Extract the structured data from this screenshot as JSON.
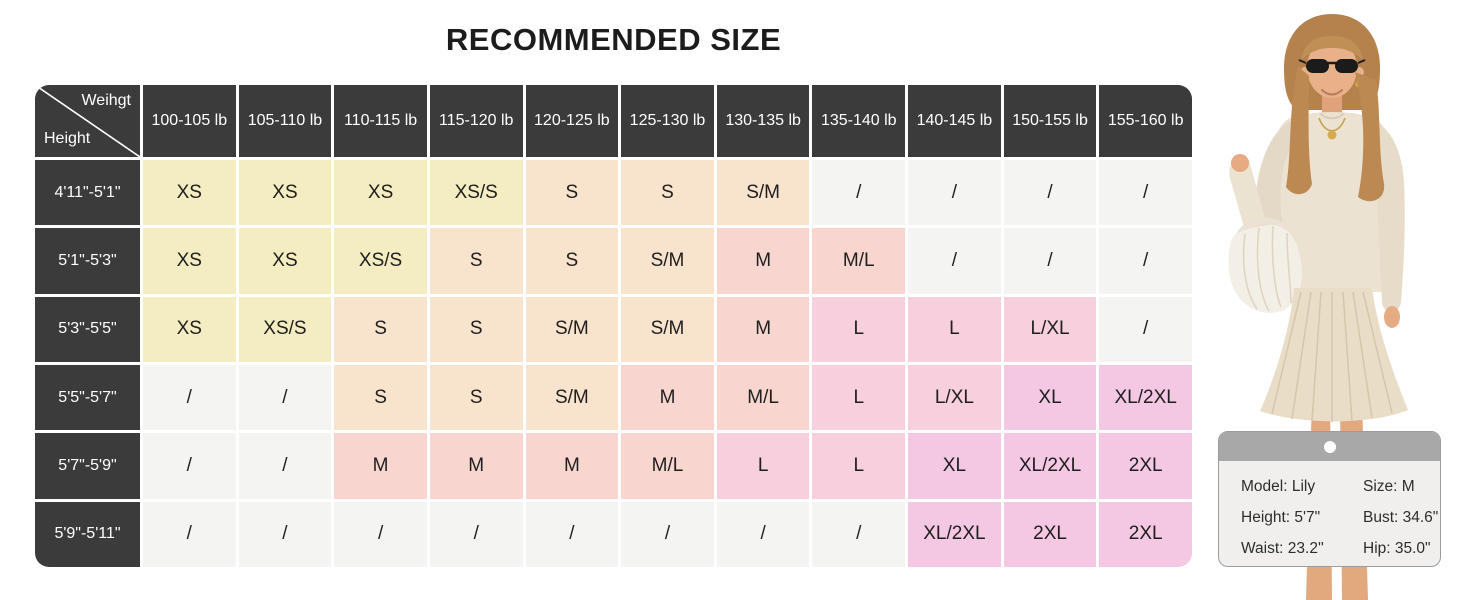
{
  "title": "RECOMMENDED SIZE",
  "chart_data": {
    "type": "table",
    "title": "RECOMMENDED SIZE",
    "corner": {
      "top_right_label": "Weihgt",
      "bottom_left_label": "Height"
    },
    "columns": [
      "100-105 lb",
      "105-110 lb",
      "110-115 lb",
      "115-120 lb",
      "120-125 lb",
      "125-130 lb",
      "130-135 lb",
      "135-140 lb",
      "140-145 lb",
      "150-155 lb",
      "155-160 lb"
    ],
    "rows": [
      {
        "label": "4'11\"-5'1\"",
        "values": [
          "XS",
          "XS",
          "XS",
          "XS/S",
          "S",
          "S",
          "S/M",
          "/",
          "/",
          "/",
          "/"
        ]
      },
      {
        "label": "5'1\"-5'3\"",
        "values": [
          "XS",
          "XS",
          "XS/S",
          "S",
          "S",
          "S/M",
          "M",
          "M/L",
          "/",
          "/",
          "/"
        ]
      },
      {
        "label": "5'3\"-5'5\"",
        "values": [
          "XS",
          "XS/S",
          "S",
          "S",
          "S/M",
          "S/M",
          "M",
          "L",
          "L",
          "L/XL",
          "/"
        ]
      },
      {
        "label": "5'5\"-5'7\"",
        "values": [
          "/",
          "/",
          "S",
          "S",
          "S/M",
          "M",
          "M/L",
          "L",
          "L/XL",
          "XL",
          "XL/2XL"
        ]
      },
      {
        "label": "5'7\"-5'9\"",
        "values": [
          "/",
          "/",
          "M",
          "M",
          "M",
          "M/L",
          "L",
          "L",
          "XL",
          "XL/2XL",
          "2XL"
        ]
      },
      {
        "label": "5'9\"-5'11\"",
        "values": [
          "/",
          "/",
          "/",
          "/",
          "/",
          "/",
          "/",
          "/",
          "XL/2XL",
          "2XL",
          "2XL"
        ]
      }
    ],
    "cell_colors": {
      "XS": "#f4edc2",
      "XS/S": "#f4edc2",
      "S": "#f8e3cc",
      "S/M": "#f8e3cc",
      "M": "#f8d5cf",
      "M/L": "#f8d5cf",
      "L": "#f8cfdc",
      "L/XL": "#f8cfdc",
      "XL": "#f4c8e2",
      "XL/2XL": "#f4c8e2",
      "2XL": "#f4c8e2",
      "/": "#f4f4f3"
    },
    "header_bg": "#3b3b3b",
    "header_text_color": "#ffffff",
    "grid_gap_color": "#ffffff"
  },
  "model_card": {
    "lines_left": [
      "Model: Lily",
      "Height: 5'7\"",
      "Waist: 23.2''"
    ],
    "lines_right": [
      "Size: M",
      "Bust: 34.6\"",
      "Hip: 35.0\""
    ]
  }
}
